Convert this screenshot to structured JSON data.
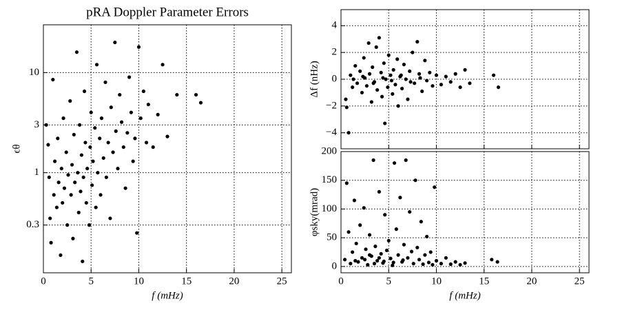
{
  "chart_data": [
    {
      "type": "scatter",
      "title": "pRA Doppler Parameter Errors",
      "xlabel": "f (mHz)",
      "ylabel": "ϵθ",
      "color": "#000000",
      "yscale": "log",
      "grid": true,
      "show_xticklabels": true,
      "xlim": [
        0,
        26
      ],
      "ylim": [
        0.1,
        30
      ],
      "xticks": [
        0,
        5,
        10,
        15,
        20,
        25
      ],
      "yticks": [
        0.3,
        1,
        3,
        10
      ],
      "x": [
        0.3,
        0.5,
        0.6,
        0.7,
        0.8,
        1.0,
        1.1,
        1.2,
        1.4,
        1.5,
        1.6,
        1.8,
        1.9,
        2.0,
        2.1,
        2.2,
        2.4,
        2.5,
        2.6,
        2.8,
        2.9,
        3.0,
        3.1,
        3.2,
        3.3,
        3.5,
        3.6,
        3.7,
        3.8,
        3.9,
        4.0,
        4.1,
        4.2,
        4.3,
        4.4,
        4.5,
        4.6,
        4.8,
        4.9,
        5.0,
        5.1,
        5.2,
        5.4,
        5.5,
        5.6,
        5.7,
        5.9,
        6.0,
        6.1,
        6.3,
        6.5,
        6.6,
        6.8,
        7.0,
        7.1,
        7.3,
        7.5,
        7.6,
        7.8,
        8.0,
        8.2,
        8.4,
        8.6,
        8.8,
        9.0,
        9.2,
        9.4,
        9.6,
        9.8,
        10.0,
        10.2,
        10.5,
        10.8,
        11.0,
        11.5,
        12.0,
        12.5,
        13.0,
        14.0,
        16.0,
        16.5
      ],
      "values": [
        3.0,
        1.9,
        0.9,
        0.35,
        0.2,
        8.5,
        0.6,
        1.3,
        0.45,
        2.2,
        0.8,
        0.15,
        1.1,
        0.5,
        3.5,
        0.7,
        1.6,
        0.3,
        0.95,
        5.2,
        0.6,
        1.2,
        0.22,
        2.4,
        0.8,
        16,
        1.0,
        0.4,
        3.0,
        0.65,
        1.5,
        0.13,
        0.9,
        6.5,
        2.0,
        0.5,
        1.1,
        0.3,
        1.8,
        4.0,
        0.75,
        1.3,
        2.8,
        0.45,
        12,
        1.0,
        2.2,
        0.6,
        3.5,
        1.4,
        8.0,
        0.9,
        2.0,
        0.35,
        4.5,
        1.6,
        20,
        2.6,
        1.1,
        6.0,
        3.2,
        1.8,
        0.7,
        2.5,
        9.0,
        4.0,
        1.3,
        2.2,
        0.25,
        18,
        3.5,
        6.5,
        2.0,
        4.8,
        1.8,
        3.8,
        12,
        2.3,
        6.0,
        6.0,
        5.0
      ]
    },
    {
      "type": "scatter",
      "ylabel": "Δf (nHz)",
      "color": "#000000",
      "grid": true,
      "show_xticklabels": false,
      "xlim": [
        0,
        26
      ],
      "ylim": [
        -5.2,
        5.2
      ],
      "xticks": [
        0,
        5,
        10,
        15,
        20,
        25
      ],
      "yticks": [
        {
          "value": -4,
          "label": "−4"
        },
        {
          "value": -2,
          "label": "−2"
        },
        0,
        2,
        4
      ],
      "x": [
        0.5,
        0.6,
        0.8,
        1.0,
        1.2,
        1.5,
        1.7,
        2.0,
        2.2,
        2.4,
        2.5,
        2.7,
        2.9,
        3.0,
        3.2,
        3.3,
        3.5,
        3.7,
        3.8,
        4.0,
        4.2,
        4.3,
        4.5,
        4.6,
        4.7,
        4.9,
        5.0,
        5.2,
        5.4,
        5.5,
        5.7,
        5.9,
        6.0,
        6.2,
        6.4,
        6.6,
        6.8,
        7.0,
        7.2,
        7.5,
        7.7,
        8.0,
        8.2,
        8.5,
        8.8,
        9.0,
        9.3,
        9.6,
        10.0,
        10.5,
        11.0,
        11.5,
        12.0,
        12.5,
        13.0,
        13.5,
        16.0,
        16.5,
        1.3,
        2.3,
        3.4,
        4.4,
        5.3,
        6.3,
        7.3,
        8.3
      ],
      "values": [
        -1.5,
        -2.1,
        -4.0,
        0.3,
        -0.6,
        1.0,
        -0.3,
        0.6,
        -1.0,
        1.6,
        0.1,
        -0.5,
        2.7,
        0.4,
        -1.7,
        0.9,
        -0.2,
        2.4,
        -0.8,
        3.1,
        0.5,
        -1.3,
        1.2,
        -3.3,
        0.0,
        -0.6,
        1.8,
        0.3,
        -1.1,
        0.7,
        -0.4,
        1.5,
        -2.0,
        0.2,
        -0.7,
        1.1,
        0.0,
        -1.5,
        0.6,
        2.0,
        -0.3,
        2.8,
        0.4,
        -0.9,
        1.4,
        -0.1,
        0.5,
        -0.5,
        0.3,
        -0.4,
        0.2,
        -0.2,
        0.4,
        -0.6,
        0.7,
        -0.3,
        0.3,
        -0.6,
        0.0,
        0.2,
        -0.3,
        0.1,
        -0.1,
        0.3,
        -0.2,
        0.1
      ]
    },
    {
      "type": "scatter",
      "xlabel": "f (mHz)",
      "ylabel": "φsky(mrad)",
      "color": "#000000",
      "grid": true,
      "show_xticklabels": true,
      "xlim": [
        0,
        26
      ],
      "ylim": [
        -11,
        200
      ],
      "xticks": [
        0,
        5,
        10,
        15,
        20,
        25
      ],
      "yticks": [
        0,
        50,
        100,
        150,
        200
      ],
      "x": [
        0.4,
        0.6,
        0.8,
        1.0,
        1.2,
        1.4,
        1.6,
        1.8,
        2.0,
        2.2,
        2.4,
        2.6,
        2.8,
        3.0,
        3.2,
        3.4,
        3.6,
        3.8,
        4.0,
        4.2,
        4.4,
        4.6,
        4.8,
        5.0,
        5.2,
        5.4,
        5.6,
        5.8,
        6.0,
        6.2,
        6.4,
        6.6,
        6.8,
        7.0,
        7.2,
        7.4,
        7.6,
        7.8,
        8.0,
        8.2,
        8.4,
        8.6,
        8.8,
        9.0,
        9.2,
        9.4,
        9.6,
        9.8,
        10.0,
        10.5,
        11.0,
        11.5,
        12.0,
        12.5,
        13.0,
        15.8,
        16.4,
        1.5,
        2.5,
        3.5,
        4.5,
        5.5,
        6.5,
        3.0,
        4.0
      ],
      "values": [
        12,
        145,
        60,
        5,
        25,
        115,
        40,
        8,
        72,
        15,
        102,
        30,
        3,
        55,
        18,
        185,
        35,
        10,
        130,
        22,
        6,
        90,
        28,
        45,
        14,
        2,
        180,
        65,
        20,
        120,
        8,
        38,
        185,
        15,
        95,
        26,
        5,
        150,
        33,
        12,
        78,
        4,
        20,
        52,
        7,
        25,
        3,
        138,
        10,
        5,
        15,
        4,
        8,
        3,
        6,
        12,
        8,
        10,
        12,
        5,
        9,
        7,
        11,
        20,
        15
      ]
    }
  ]
}
